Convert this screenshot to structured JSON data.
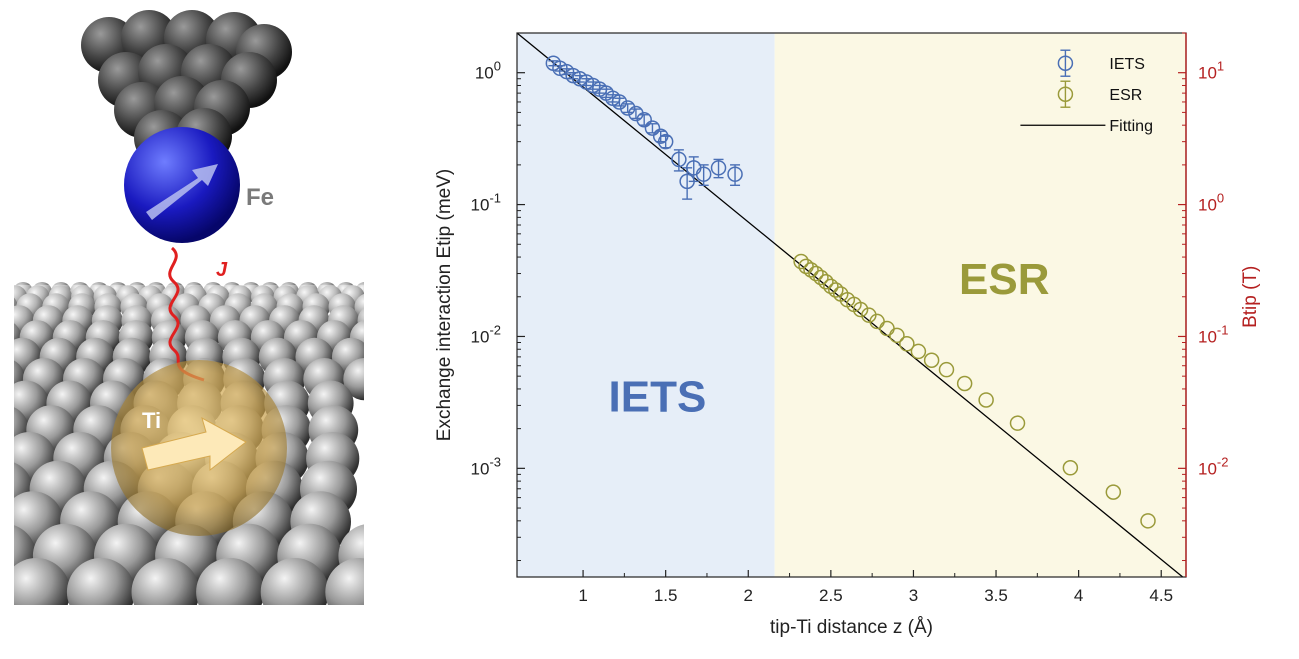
{
  "schematic": {
    "fe_label": "Fe",
    "ti_label": "Ti",
    "j_label": "J"
  },
  "colors": {
    "iets": "#4a6fb5",
    "esr": "#9a9a3a",
    "iets_bg": "#e6eef8",
    "esr_bg": "#fbf8e4",
    "fit": "#000000",
    "right_axis": "#b52020"
  },
  "chart_data": {
    "type": "scatter",
    "xlabel": "tip-Ti distance z (Å)",
    "ylabel_left": "Exchange interaction Etip (meV)",
    "ylabel_right": "Btip (T)",
    "xlim": [
      0.6,
      4.65
    ],
    "ylim": [
      0.00015,
      2.0
    ],
    "yscale": "log",
    "right_axis_scale": "log",
    "xticks": [
      "1",
      "1.5",
      "2",
      "2.5",
      "3",
      "3.5",
      "4",
      "4.5"
    ],
    "yticks_left": [
      "10^0",
      "10^-1",
      "10^-2",
      "10^-3"
    ],
    "yticks_right": [
      "10^1",
      "10^0",
      "10^-1",
      "10^-2"
    ],
    "region_boundary_x": 2.16,
    "region_labels": [
      "IETS",
      "ESR"
    ],
    "legend": [
      "IETS",
      "ESR",
      "Fitting"
    ],
    "legend_position": "top-right",
    "series": [
      {
        "name": "IETS",
        "points": [
          {
            "x": 0.82,
            "y": 1.18,
            "err": 0.05
          },
          {
            "x": 0.86,
            "y": 1.08,
            "err": 0.05
          },
          {
            "x": 0.9,
            "y": 1.02,
            "err": 0.05
          },
          {
            "x": 0.94,
            "y": 0.95,
            "err": 0.05
          },
          {
            "x": 0.98,
            "y": 0.9,
            "err": 0.05
          },
          {
            "x": 1.02,
            "y": 0.85,
            "err": 0.05
          },
          {
            "x": 1.06,
            "y": 0.8,
            "err": 0.05
          },
          {
            "x": 1.1,
            "y": 0.75,
            "err": 0.05
          },
          {
            "x": 1.14,
            "y": 0.7,
            "err": 0.05
          },
          {
            "x": 1.18,
            "y": 0.64,
            "err": 0.04
          },
          {
            "x": 1.22,
            "y": 0.6,
            "err": 0.04
          },
          {
            "x": 1.27,
            "y": 0.54,
            "err": 0.04
          },
          {
            "x": 1.32,
            "y": 0.49,
            "err": 0.04
          },
          {
            "x": 1.37,
            "y": 0.44,
            "err": 0.04
          },
          {
            "x": 1.42,
            "y": 0.38,
            "err": 0.03
          },
          {
            "x": 1.47,
            "y": 0.33,
            "err": 0.03
          },
          {
            "x": 1.5,
            "y": 0.3,
            "err": 0.03
          },
          {
            "x": 1.58,
            "y": 0.22,
            "err": 0.04
          },
          {
            "x": 1.63,
            "y": 0.15,
            "err": 0.04
          },
          {
            "x": 1.67,
            "y": 0.19,
            "err": 0.04
          },
          {
            "x": 1.73,
            "y": 0.17,
            "err": 0.03
          },
          {
            "x": 1.82,
            "y": 0.19,
            "err": 0.03
          },
          {
            "x": 1.92,
            "y": 0.17,
            "err": 0.03
          }
        ]
      },
      {
        "name": "ESR",
        "points": [
          {
            "x": 2.32,
            "y": 0.037
          },
          {
            "x": 2.35,
            "y": 0.034
          },
          {
            "x": 2.38,
            "y": 0.032
          },
          {
            "x": 2.41,
            "y": 0.03
          },
          {
            "x": 2.44,
            "y": 0.028
          },
          {
            "x": 2.47,
            "y": 0.026
          },
          {
            "x": 2.5,
            "y": 0.024
          },
          {
            "x": 2.53,
            "y": 0.0225
          },
          {
            "x": 2.56,
            "y": 0.021
          },
          {
            "x": 2.6,
            "y": 0.019
          },
          {
            "x": 2.64,
            "y": 0.0175
          },
          {
            "x": 2.68,
            "y": 0.016
          },
          {
            "x": 2.73,
            "y": 0.0145
          },
          {
            "x": 2.78,
            "y": 0.013
          },
          {
            "x": 2.84,
            "y": 0.0115
          },
          {
            "x": 2.9,
            "y": 0.0102
          },
          {
            "x": 2.96,
            "y": 0.0088
          },
          {
            "x": 3.03,
            "y": 0.0077
          },
          {
            "x": 3.11,
            "y": 0.0066
          },
          {
            "x": 3.2,
            "y": 0.0056
          },
          {
            "x": 3.31,
            "y": 0.0044
          },
          {
            "x": 3.44,
            "y": 0.0033
          },
          {
            "x": 3.63,
            "y": 0.0022
          },
          {
            "x": 3.95,
            "y": 0.00101
          },
          {
            "x": 4.21,
            "y": 0.00066
          },
          {
            "x": 4.42,
            "y": 0.0004
          }
        ]
      }
    ],
    "fit": {
      "name": "Fitting",
      "x": [
        0.6,
        4.63
      ],
      "y": [
        2.0,
        0.00015
      ]
    }
  }
}
